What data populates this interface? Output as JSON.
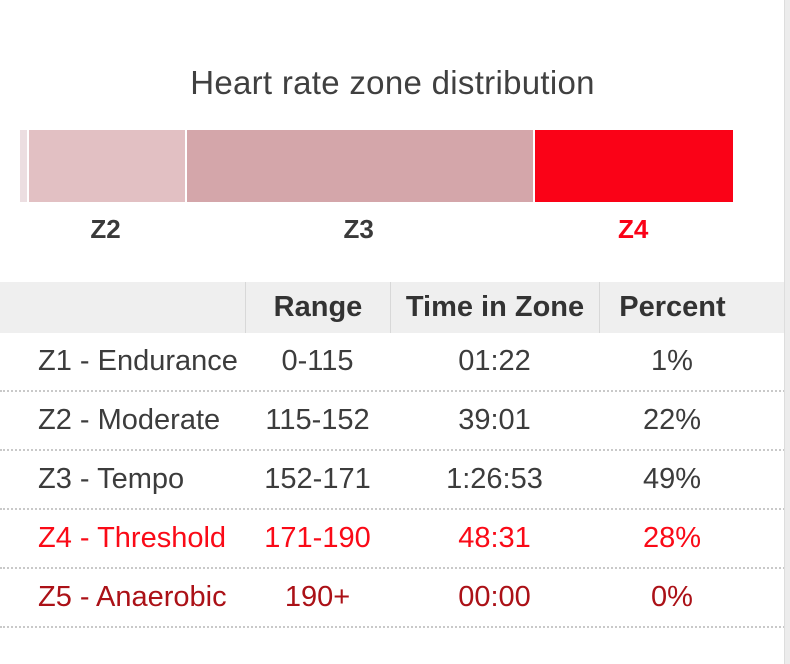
{
  "title": "Heart rate zone distribution",
  "chart_data": {
    "type": "bar",
    "variant": "horizontal-stacked",
    "title": "Heart rate zone distribution",
    "segments": [
      {
        "id": "Z1",
        "label": "",
        "percent": 1,
        "color": "#ecdee1",
        "label_color": "#3a3a3a",
        "label_bold": false
      },
      {
        "id": "Z2",
        "label": "Z2",
        "percent": 22,
        "color": "#e2c0c3",
        "label_color": "#3a3a3a",
        "label_bold": false
      },
      {
        "id": "Z3",
        "label": "Z3",
        "percent": 49,
        "color": "#d4a6aa",
        "label_color": "#3a3a3a",
        "label_bold": false
      },
      {
        "id": "Z4",
        "label": "Z4",
        "percent": 28,
        "color": "#fa0217",
        "label_color": "#fa0217",
        "label_bold": true
      }
    ]
  },
  "table": {
    "headers": [
      "",
      "Range",
      "Time in Zone",
      "Percent"
    ],
    "rows": [
      {
        "zone": "Z1 - Endurance",
        "range": "0-115",
        "time": "01:22",
        "percent": "1%",
        "color": "#3c3c3c"
      },
      {
        "zone": "Z2 - Moderate",
        "range": "115-152",
        "time": "39:01",
        "percent": "22%",
        "color": "#3c3c3c"
      },
      {
        "zone": "Z3 - Tempo",
        "range": "152-171",
        "time": "1:26:53",
        "percent": "49%",
        "color": "#3c3c3c"
      },
      {
        "zone": "Z4 - Threshold",
        "range": "171-190",
        "time": "48:31",
        "percent": "28%",
        "color": "#fa0a17"
      },
      {
        "zone": "Z5 - Anaerobic",
        "range": "190+",
        "time": "00:00",
        "percent": "0%",
        "color": "#ab1117"
      }
    ]
  },
  "colors": {
    "accent_red": "#fa0217",
    "dark_red": "#ab1117",
    "header_bg": "#efefef",
    "text": "#3c3c3c",
    "divider": "#c9c9c9"
  }
}
